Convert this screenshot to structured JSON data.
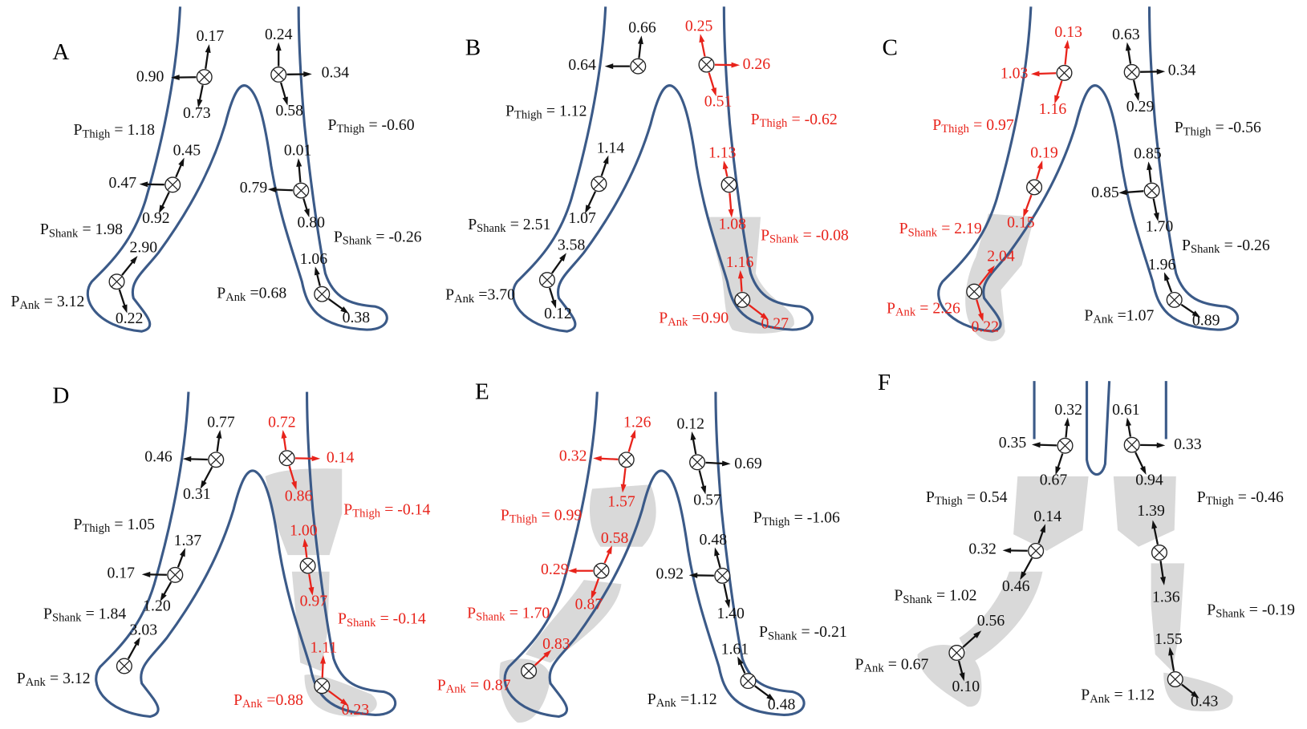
{
  "panels": [
    {
      "label": "A",
      "labels": [
        {
          "text": "0.17"
        },
        {
          "text": "0.90"
        },
        {
          "text": "0.73"
        },
        {
          "text": "0.24"
        },
        {
          "text": "0.34"
        },
        {
          "text": "0.58"
        },
        {
          "symbol": "P",
          "subscript": "Thigh",
          "text": "= 1.18"
        },
        {
          "symbol": "P",
          "subscript": "Thigh",
          "text": "= -0.60"
        },
        {
          "text": "0.45"
        },
        {
          "text": "0.47"
        },
        {
          "text": "0.92"
        },
        {
          "text": "0.01"
        },
        {
          "text": "0.79"
        },
        {
          "text": "0.80"
        },
        {
          "symbol": "P",
          "subscript": "Shank",
          "text": "= 1.98"
        },
        {
          "symbol": "P",
          "subscript": "Shank",
          "text": "= -0.26"
        },
        {
          "text": "2.90"
        },
        {
          "text": "1.06"
        },
        {
          "symbol": "P",
          "subscript": "Ank",
          "text": "= 3.12"
        },
        {
          "symbol": "P",
          "subscript": "Ank",
          "text": "=0.68"
        },
        {
          "text": "0.22"
        },
        {
          "text": "0.38"
        }
      ]
    },
    {
      "label": "B",
      "labels": [
        {
          "text": "0.66"
        },
        {
          "text": "0.64"
        },
        {
          "text": "0.25"
        },
        {
          "text": "0.26"
        },
        {
          "text": "0.51"
        },
        {
          "symbol": "P",
          "subscript": "Thigh",
          "text": "= 1.12"
        },
        {
          "symbol": "P",
          "subscript": "Thigh",
          "text": "= -0.62"
        },
        {
          "text": "1.14"
        },
        {
          "text": "1.13"
        },
        {
          "text": "1.07"
        },
        {
          "text": "1.08"
        },
        {
          "symbol": "P",
          "subscript": "Shank",
          "text": "= 2.51"
        },
        {
          "symbol": "P",
          "subscript": "Shank",
          "text": "= -0.08"
        },
        {
          "text": "3.58"
        },
        {
          "text": "1.16"
        },
        {
          "symbol": "P",
          "subscript": "Ank",
          "text": "=3.70"
        },
        {
          "symbol": "P",
          "subscript": "Ank",
          "text": "=0.90"
        },
        {
          "text": "0.12"
        },
        {
          "text": "0.27"
        }
      ]
    },
    {
      "label": "C",
      "labels": [
        {
          "text": "0.13"
        },
        {
          "text": "0.63"
        },
        {
          "text": "1.03"
        },
        {
          "text": "0.34"
        },
        {
          "text": "1.16"
        },
        {
          "text": "0.29"
        },
        {
          "symbol": "P",
          "subscript": "Thigh",
          "text": "= 0.97"
        },
        {
          "symbol": "P",
          "subscript": "Thigh",
          "text": "= -0.56"
        },
        {
          "text": "0.19"
        },
        {
          "text": "0.85"
        },
        {
          "text": "0.85"
        },
        {
          "text": "0.15"
        },
        {
          "text": "1.70"
        },
        {
          "symbol": "P",
          "subscript": "Shank",
          "text": "= 2.19"
        },
        {
          "symbol": "P",
          "subscript": "Shank",
          "text": "= -0.26"
        },
        {
          "text": "2.04"
        },
        {
          "text": "1.96"
        },
        {
          "symbol": "P",
          "subscript": "Ank",
          "text": "= 2.26"
        },
        {
          "symbol": "P",
          "subscript": "Ank",
          "text": "=1.07"
        },
        {
          "text": "0.22"
        },
        {
          "text": "0.89"
        }
      ]
    },
    {
      "label": "D",
      "labels": [
        {
          "text": "0.77"
        },
        {
          "text": "0.72"
        },
        {
          "text": "0.46"
        },
        {
          "text": "0.14"
        },
        {
          "text": "0.31"
        },
        {
          "text": "0.86"
        },
        {
          "symbol": "P",
          "subscript": "Thigh",
          "text": "= 1.05"
        },
        {
          "symbol": "P",
          "subscript": "Thigh",
          "text": "= -0.14"
        },
        {
          "text": "1.00"
        },
        {
          "text": "1.37"
        },
        {
          "text": "0.17"
        },
        {
          "text": "0.97"
        },
        {
          "text": "1.20"
        },
        {
          "symbol": "P",
          "subscript": "Shank",
          "text": "= 1.84"
        },
        {
          "symbol": "P",
          "subscript": "Shank",
          "text": "= -0.14"
        },
        {
          "text": "3.03"
        },
        {
          "text": "1.11"
        },
        {
          "symbol": "P",
          "subscript": "Ank",
          "text": "= 3.12"
        },
        {
          "symbol": "P",
          "subscript": "Ank",
          "text": "=0.88"
        },
        {
          "text": "0.23"
        }
      ]
    },
    {
      "label": "E",
      "labels": [
        {
          "text": "1.26"
        },
        {
          "text": "0.12"
        },
        {
          "text": "0.32"
        },
        {
          "text": "0.69"
        },
        {
          "text": "1.57"
        },
        {
          "text": "0.57"
        },
        {
          "symbol": "P",
          "subscript": "Thigh",
          "text": "= 0.99"
        },
        {
          "symbol": "P",
          "subscript": "Thigh",
          "text": "= -1.06"
        },
        {
          "text": "0.58"
        },
        {
          "text": "0.48"
        },
        {
          "text": "0.29"
        },
        {
          "text": "0.92"
        },
        {
          "text": "0.87"
        },
        {
          "text": "1.40"
        },
        {
          "symbol": "P",
          "subscript": "Shank",
          "text": "= 1.70"
        },
        {
          "symbol": "P",
          "subscript": "Shank",
          "text": "= -0.21"
        },
        {
          "text": "0.83"
        },
        {
          "text": "1.61"
        },
        {
          "symbol": "P",
          "subscript": "Ank",
          "text": "= 0.87"
        },
        {
          "symbol": "P",
          "subscript": "Ank",
          "text": "=1.12"
        },
        {
          "text": "0.48"
        }
      ]
    },
    {
      "label": "F",
      "labels": [
        {
          "text": "0.32"
        },
        {
          "text": "0.61"
        },
        {
          "text": "0.35"
        },
        {
          "text": "0.33"
        },
        {
          "text": "0.67"
        },
        {
          "text": "0.94"
        },
        {
          "symbol": "P",
          "subscript": "Thigh",
          "text": "= 0.54"
        },
        {
          "symbol": "P",
          "subscript": "Thigh",
          "text": "= -0.46"
        },
        {
          "text": "0.14"
        },
        {
          "text": "1.39"
        },
        {
          "text": "0.32"
        },
        {
          "text": "0.46"
        },
        {
          "text": "1.36"
        },
        {
          "symbol": "P",
          "subscript": "Shank",
          "text": "= 1.02"
        },
        {
          "symbol": "P",
          "subscript": "Shank",
          "text": "= -0.19"
        },
        {
          "text": "0.56"
        },
        {
          "text": "1.55"
        },
        {
          "symbol": "P",
          "subscript": "Ank",
          "text": "= 0.67"
        },
        {
          "symbol": "P",
          "subscript": "Ank",
          "text": "= 1.12"
        },
        {
          "text": "0.10"
        },
        {
          "text": "0.43"
        }
      ]
    }
  ]
}
